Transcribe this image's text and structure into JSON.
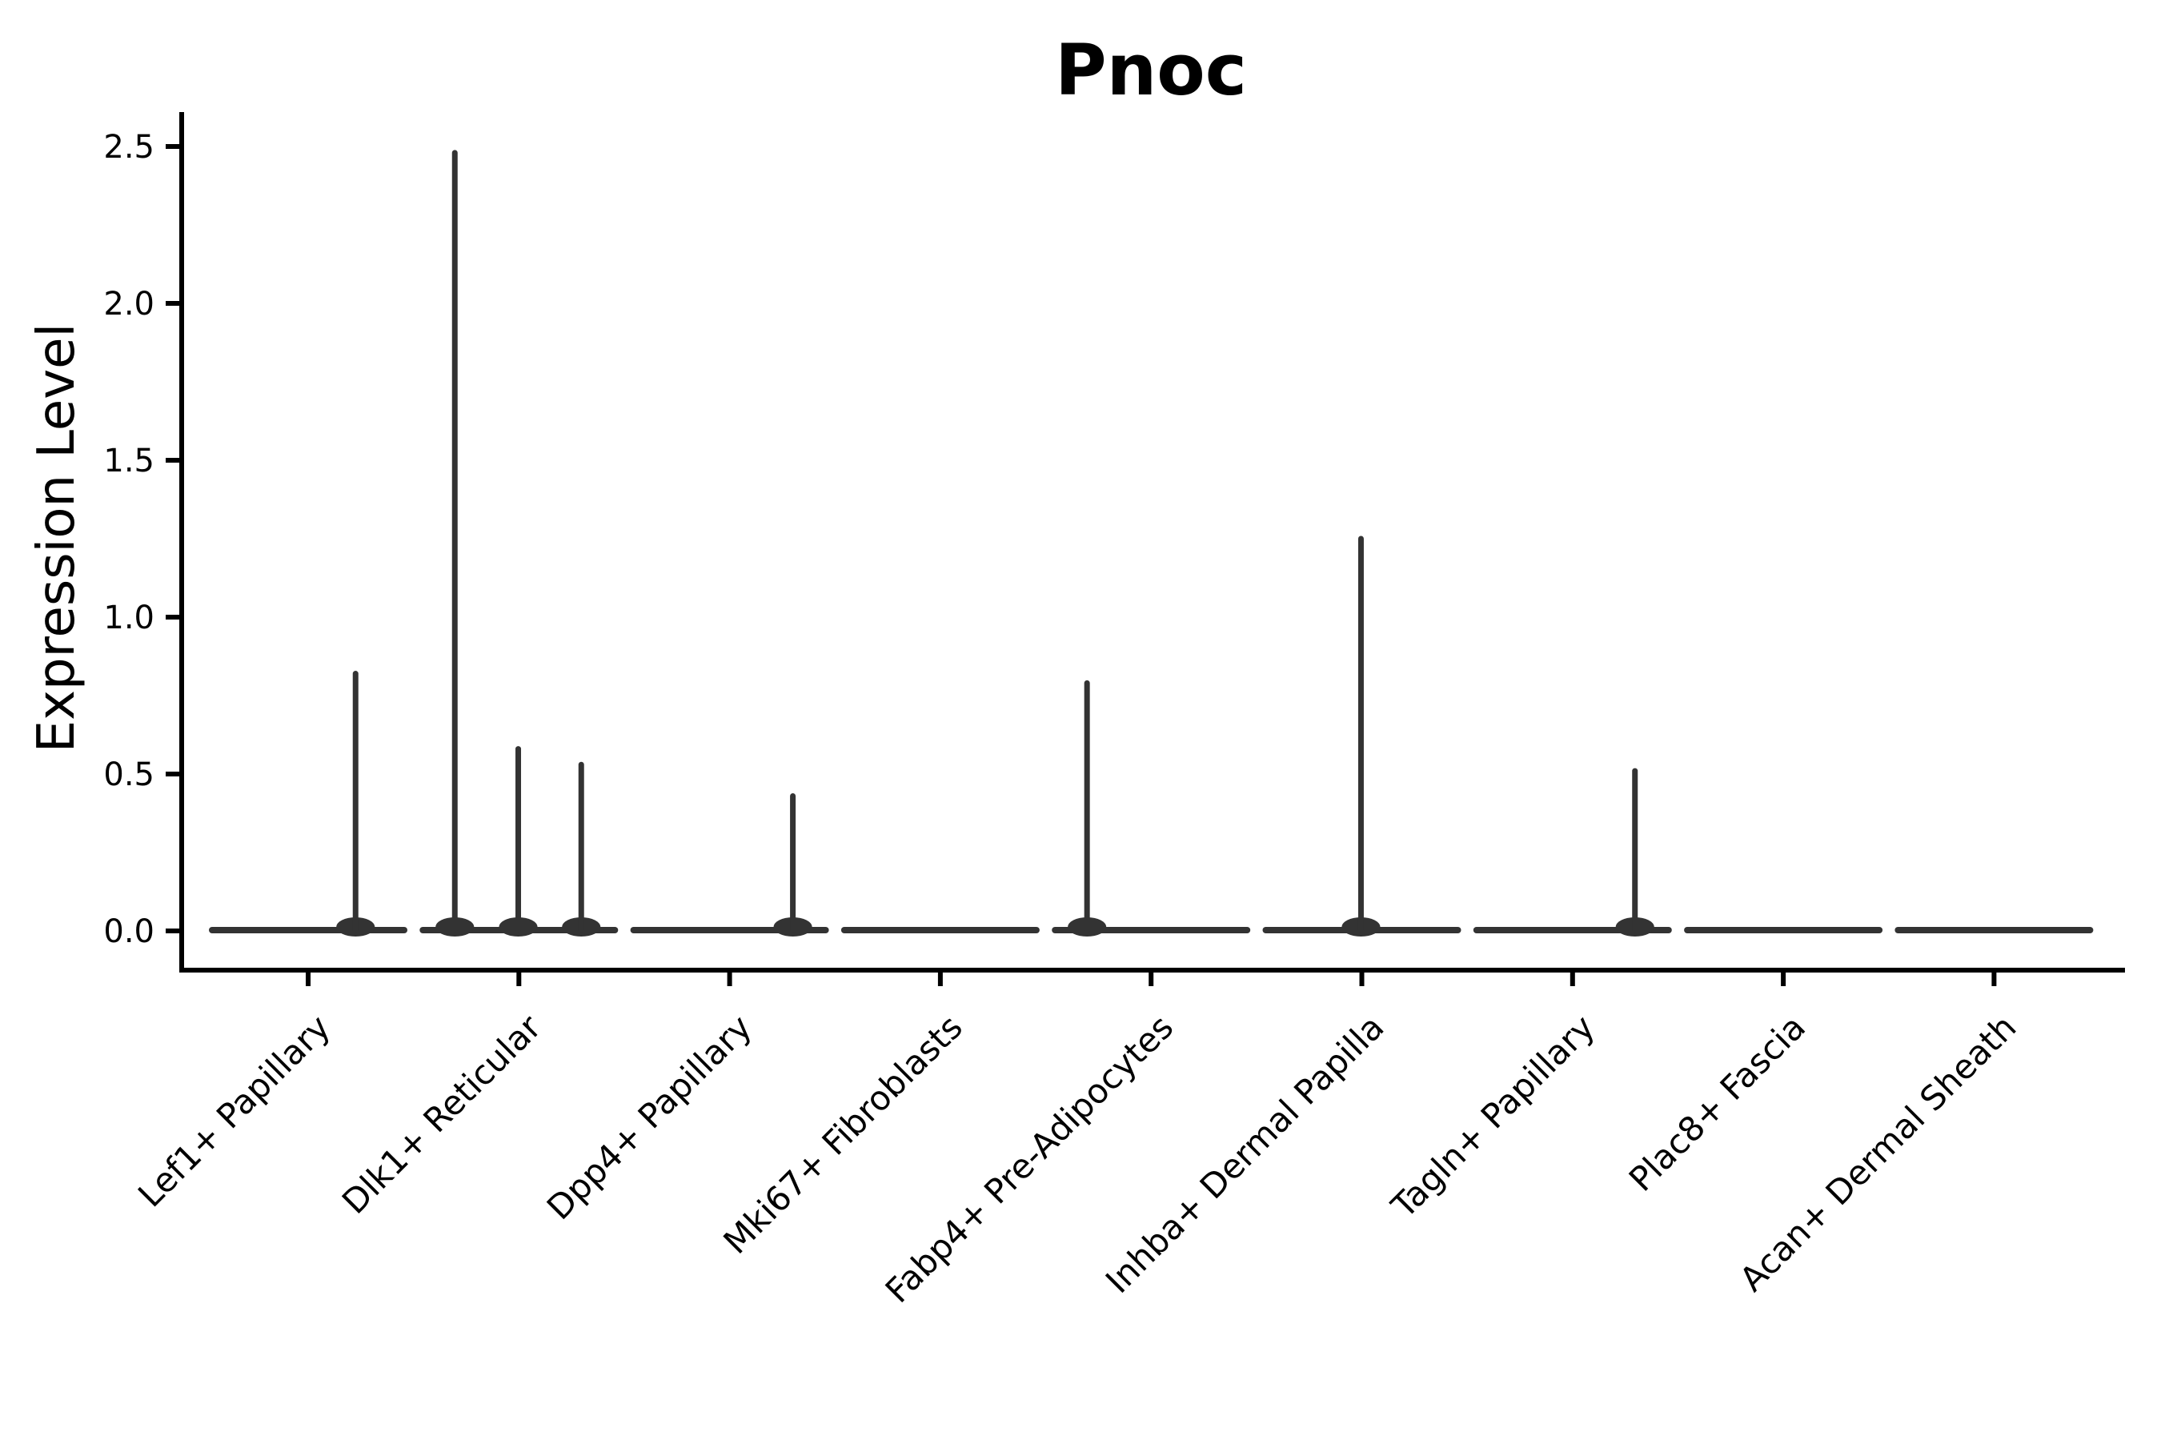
{
  "title": "Pnoc",
  "axes": {
    "y_label": "Expression Level",
    "y_ticks": [
      "0.0",
      "0.5",
      "1.0",
      "1.5",
      "2.0",
      "2.5"
    ],
    "x_categories": [
      "Lef1+ Papillary",
      "Dlk1+ Reticular",
      "Dpp4+ Papillary",
      "Mki67+ Fibroblasts",
      "Fabp4+ Pre-Adipocytes",
      "Inhba+ Dermal Papilla",
      "Tagln+ Papillary",
      "Plac8+ Fascia",
      "Acan+ Dermal Sheath"
    ]
  },
  "chart_data": {
    "type": "violin",
    "title": "Pnoc",
    "xlabel": "",
    "ylabel": "Expression Level",
    "ylim": [
      0,
      2.5
    ],
    "grid": false,
    "legend": null,
    "categories": [
      "Lef1+ Papillary",
      "Dlk1+ Reticular",
      "Dpp4+ Papillary",
      "Mki67+ Fibroblasts",
      "Fabp4+ Pre-Adipocytes",
      "Inhba+ Dermal Papilla",
      "Tagln+ Papillary",
      "Plac8+ Fascia",
      "Acan+ Dermal Sheath"
    ],
    "violin_width": 0.91,
    "baseline_value": 0.0,
    "series": [
      {
        "category": "Lef1+ Papillary",
        "spikes": [
          {
            "x": 1.225,
            "value": 0.82
          }
        ]
      },
      {
        "category": "Dlk1+ Reticular",
        "spikes": [
          {
            "x": 1.696,
            "value": 2.48
          },
          {
            "x": 1.997,
            "value": 0.58
          },
          {
            "x": 2.296,
            "value": 0.53
          }
        ]
      },
      {
        "category": "Dpp4+ Papillary",
        "spikes": [
          {
            "x": 3.3,
            "value": 0.43
          }
        ]
      },
      {
        "category": "Mki67+ Fibroblasts",
        "spikes": []
      },
      {
        "category": "Fabp4+ Pre-Adipocytes",
        "spikes": [
          {
            "x": 4.696,
            "value": 0.79
          }
        ]
      },
      {
        "category": "Inhba+ Dermal Papilla",
        "spikes": [
          {
            "x": 5.996,
            "value": 1.25
          }
        ]
      },
      {
        "category": "Tagln+ Papillary",
        "spikes": [
          {
            "x": 7.296,
            "value": 0.51
          }
        ]
      },
      {
        "category": "Plac8+ Fascia",
        "spikes": []
      },
      {
        "category": "Acan+ Dermal Sheath",
        "spikes": []
      }
    ]
  },
  "colors": {
    "violin": "#333333",
    "axis": "#000000",
    "text": "#000000",
    "background": "#ffffff"
  }
}
